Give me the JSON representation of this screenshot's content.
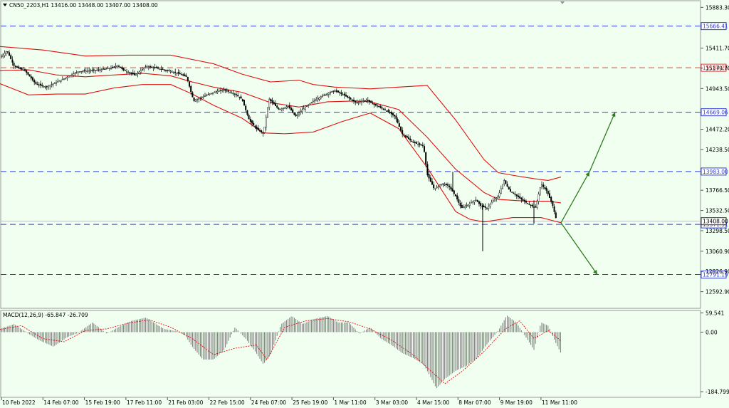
{
  "header": {
    "symbol_line": "CN50_2203,H1  13416.00 13448.00 13407.00 13408.00"
  },
  "macd_header": "MACD(12,26,9) -65.847 -26.709",
  "chart_data": [
    {
      "type": "candlestick",
      "name": "CN50_2203,H1",
      "ylim": [
        12400,
        15960
      ],
      "y_ticks": [
        "15883.30",
        "15411.70",
        "15179.70",
        "14943.50",
        "14472.20",
        "14238.50",
        "13766.50",
        "13532.50",
        "13298.50",
        "13060.90",
        "12826.90",
        "12592.90"
      ],
      "x_ticks": [
        "10 Feb 2022",
        "14 Feb 07:00",
        "15 Feb 19:00",
        "17 Feb 11:00",
        "21 Feb 03:00",
        "22 Feb 15:00",
        "24 Feb 07:00",
        "25 Feb 19:00",
        "1 Mar 11:00",
        "3 Mar 03:00",
        "4 Mar 15:00",
        "8 Mar 07:00",
        "9 Mar 19:00",
        "11 Mar 11:00"
      ],
      "levels": [
        {
          "label": "15666.41",
          "value": 15666.41,
          "color": "#2f3fd8",
          "style": "dashed"
        },
        {
          "label": "15184.26",
          "value": 15184.26,
          "color": "#e04040",
          "style": "dashed"
        },
        {
          "label": "14669.06",
          "value": 14669.06,
          "color": "#2f3fd8",
          "style": "dashed"
        },
        {
          "label": "13983.00",
          "value": 13983.0,
          "color": "#2f3fd8",
          "style": "dashed"
        },
        {
          "label": "13371.51",
          "value": 13371.51,
          "color": "#2f3fd8",
          "style": "dashed"
        },
        {
          "label": "12791.19",
          "value": 12791.19,
          "color": "#2f3fd8",
          "style": "dashed"
        }
      ],
      "current_price": {
        "label": "13408.00",
        "value": 13408.0
      },
      "price_path": [
        [
          0,
          15300
        ],
        [
          10,
          15380
        ],
        [
          20,
          15200
        ],
        [
          35,
          15150
        ],
        [
          50,
          15000
        ],
        [
          65,
          14960
        ],
        [
          80,
          15020
        ],
        [
          95,
          15080
        ],
        [
          110,
          15140
        ],
        [
          125,
          15150
        ],
        [
          140,
          15160
        ],
        [
          155,
          15180
        ],
        [
          165,
          15210
        ],
        [
          175,
          15150
        ],
        [
          190,
          15100
        ],
        [
          205,
          15200
        ],
        [
          220,
          15180
        ],
        [
          235,
          15150
        ],
        [
          250,
          15120
        ],
        [
          262,
          15080
        ],
        [
          272,
          14800
        ],
        [
          285,
          14850
        ],
        [
          300,
          14900
        ],
        [
          315,
          14930
        ],
        [
          330,
          14880
        ],
        [
          340,
          14820
        ],
        [
          350,
          14580
        ],
        [
          360,
          14480
        ],
        [
          370,
          14420
        ],
        [
          378,
          14820
        ],
        [
          392,
          14700
        ],
        [
          405,
          14740
        ],
        [
          415,
          14620
        ],
        [
          425,
          14700
        ],
        [
          440,
          14800
        ],
        [
          455,
          14870
        ],
        [
          470,
          14920
        ],
        [
          485,
          14860
        ],
        [
          500,
          14780
        ],
        [
          515,
          14810
        ],
        [
          525,
          14760
        ],
        [
          540,
          14700
        ],
        [
          555,
          14620
        ],
        [
          565,
          14420
        ],
        [
          580,
          14320
        ],
        [
          595,
          14280
        ],
        [
          600,
          13950
        ],
        [
          610,
          13780
        ],
        [
          620,
          13840
        ],
        [
          630,
          13820
        ],
        [
          640,
          13700
        ],
        [
          648,
          13560
        ],
        [
          658,
          13600
        ],
        [
          668,
          13660
        ],
        [
          676,
          13580
        ],
        [
          684,
          13560
        ],
        [
          692,
          13640
        ],
        [
          700,
          13700
        ],
        [
          708,
          13880
        ],
        [
          716,
          13760
        ],
        [
          726,
          13700
        ],
        [
          736,
          13640
        ],
        [
          744,
          13600
        ],
        [
          752,
          13560
        ],
        [
          760,
          13840
        ],
        [
          768,
          13760
        ],
        [
          776,
          13600
        ],
        [
          782,
          13408
        ]
      ],
      "wicks": [
        [
          678,
          13620,
          13060
        ],
        [
          750,
          13650,
          13380
        ],
        [
          636,
          13760,
          13980
        ]
      ],
      "bollinger": {
        "upper": [
          [
            0,
            15430
          ],
          [
            60,
            15390
          ],
          [
            120,
            15320
          ],
          [
            180,
            15330
          ],
          [
            240,
            15330
          ],
          [
            270,
            15280
          ],
          [
            300,
            15230
          ],
          [
            340,
            15110
          ],
          [
            380,
            15020
          ],
          [
            420,
            15040
          ],
          [
            440,
            14990
          ],
          [
            470,
            14960
          ],
          [
            520,
            14940
          ],
          [
            560,
            14960
          ],
          [
            600,
            14980
          ],
          [
            640,
            14580
          ],
          [
            680,
            14120
          ],
          [
            700,
            13970
          ],
          [
            720,
            13940
          ],
          [
            750,
            13900
          ],
          [
            770,
            13880
          ],
          [
            788,
            13920
          ]
        ],
        "middle": [
          [
            0,
            15150
          ],
          [
            40,
            15160
          ],
          [
            80,
            15100
          ],
          [
            120,
            15080
          ],
          [
            160,
            15100
          ],
          [
            200,
            15120
          ],
          [
            240,
            15090
          ],
          [
            270,
            15020
          ],
          [
            300,
            14960
          ],
          [
            340,
            14900
          ],
          [
            380,
            14780
          ],
          [
            420,
            14730
          ],
          [
            460,
            14790
          ],
          [
            500,
            14800
          ],
          [
            520,
            14790
          ],
          [
            560,
            14700
          ],
          [
            600,
            14380
          ],
          [
            640,
            14010
          ],
          [
            680,
            13740
          ],
          [
            700,
            13660
          ],
          [
            740,
            13640
          ],
          [
            770,
            13640
          ],
          [
            788,
            13620
          ]
        ],
        "lower": [
          [
            0,
            15000
          ],
          [
            40,
            14870
          ],
          [
            80,
            14880
          ],
          [
            120,
            14880
          ],
          [
            160,
            14950
          ],
          [
            200,
            14990
          ],
          [
            240,
            14990
          ],
          [
            270,
            14880
          ],
          [
            300,
            14750
          ],
          [
            340,
            14600
          ],
          [
            370,
            14430
          ],
          [
            400,
            14420
          ],
          [
            440,
            14440
          ],
          [
            480,
            14560
          ],
          [
            520,
            14660
          ],
          [
            560,
            14480
          ],
          [
            600,
            14030
          ],
          [
            640,
            13520
          ],
          [
            660,
            13430
          ],
          [
            680,
            13400
          ],
          [
            720,
            13450
          ],
          [
            760,
            13450
          ],
          [
            788,
            13390
          ]
        ]
      },
      "scenario_arrows": [
        {
          "from": [
            788,
            13390
          ],
          "to": [
            828,
            13980
          ]
        },
        {
          "from": [
            828,
            13980
          ],
          "to": [
            864,
            14669
          ]
        },
        {
          "from": [
            788,
            13390
          ],
          "to": [
            839,
            12791
          ]
        }
      ]
    },
    {
      "type": "bar",
      "name": "MACD(12,26,9)",
      "ylim": [
        -200,
        65
      ],
      "y_ticks": [
        "59.541",
        "0.00",
        "-184.799"
      ],
      "histogram": [
        [
          0,
          10
        ],
        [
          20,
          25
        ],
        [
          40,
          -5
        ],
        [
          55,
          -25
        ],
        [
          75,
          -45
        ],
        [
          95,
          -15
        ],
        [
          110,
          -2
        ],
        [
          130,
          30
        ],
        [
          150,
          -5
        ],
        [
          170,
          20
        ],
        [
          185,
          35
        ],
        [
          205,
          45
        ],
        [
          230,
          10
        ],
        [
          250,
          2
        ],
        [
          260,
          -10
        ],
        [
          270,
          -45
        ],
        [
          285,
          -85
        ],
        [
          300,
          -85
        ],
        [
          315,
          -55
        ],
        [
          330,
          15
        ],
        [
          345,
          -20
        ],
        [
          360,
          -65
        ],
        [
          370,
          -100
        ],
        [
          380,
          -70
        ],
        [
          395,
          25
        ],
        [
          410,
          50
        ],
        [
          425,
          25
        ],
        [
          440,
          40
        ],
        [
          460,
          50
        ],
        [
          475,
          30
        ],
        [
          490,
          30
        ],
        [
          505,
          -5
        ],
        [
          520,
          15
        ],
        [
          535,
          -20
        ],
        [
          550,
          -40
        ],
        [
          565,
          -65
        ],
        [
          580,
          -80
        ],
        [
          595,
          -100
        ],
        [
          605,
          -140
        ],
        [
          613,
          -175
        ],
        [
          625,
          -145
        ],
        [
          640,
          -120
        ],
        [
          655,
          -105
        ],
        [
          670,
          -80
        ],
        [
          685,
          -35
        ],
        [
          700,
          5
        ],
        [
          712,
          52
        ],
        [
          725,
          30
        ],
        [
          740,
          -20
        ],
        [
          750,
          -55
        ],
        [
          760,
          30
        ],
        [
          770,
          20
        ],
        [
          780,
          -30
        ],
        [
          788,
          -66
        ]
      ],
      "signal": [
        [
          0,
          8
        ],
        [
          30,
          20
        ],
        [
          60,
          -20
        ],
        [
          90,
          -30
        ],
        [
          120,
          5
        ],
        [
          150,
          10
        ],
        [
          180,
          28
        ],
        [
          210,
          38
        ],
        [
          240,
          15
        ],
        [
          270,
          -20
        ],
        [
          300,
          -70
        ],
        [
          330,
          -50
        ],
        [
          360,
          -40
        ],
        [
          375,
          -85
        ],
        [
          400,
          15
        ],
        [
          430,
          35
        ],
        [
          460,
          42
        ],
        [
          490,
          32
        ],
        [
          520,
          10
        ],
        [
          550,
          -25
        ],
        [
          580,
          -70
        ],
        [
          610,
          -130
        ],
        [
          625,
          -160
        ],
        [
          650,
          -120
        ],
        [
          680,
          -60
        ],
        [
          710,
          10
        ],
        [
          730,
          35
        ],
        [
          750,
          -20
        ],
        [
          770,
          5
        ],
        [
          788,
          -27
        ]
      ]
    }
  ]
}
